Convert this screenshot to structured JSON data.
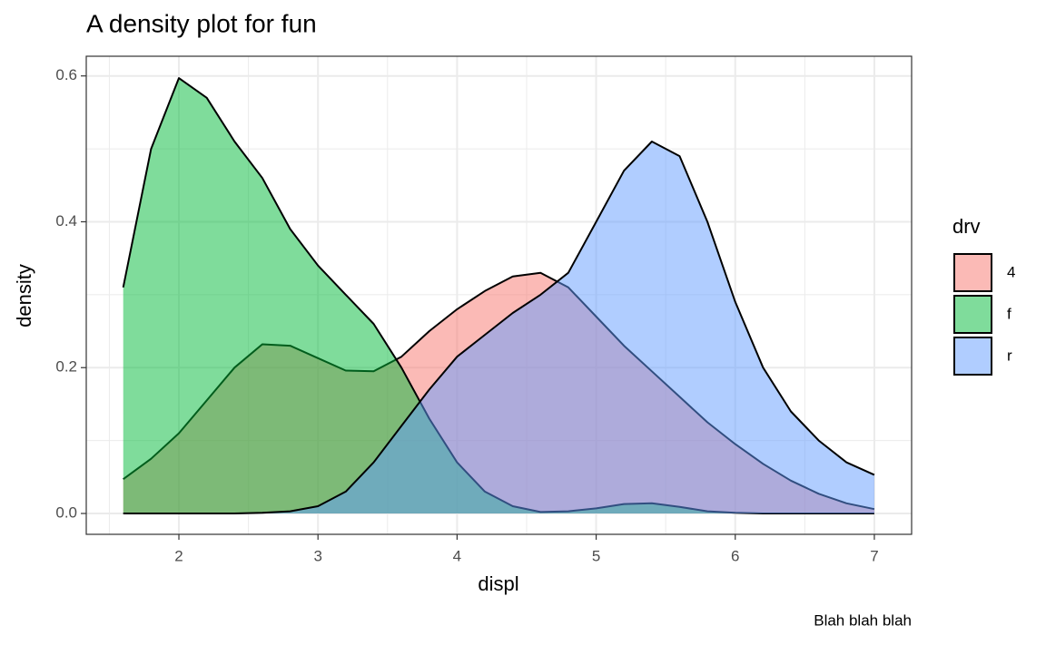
{
  "chart_data": {
    "type": "density",
    "title": "A density plot for fun",
    "x_label": "displ",
    "y_label": "density",
    "caption": "Blah blah blah",
    "legend_title": "drv",
    "legend_position": "right",
    "grid": true,
    "x": [
      1.6,
      1.8,
      2.0,
      2.2,
      2.4,
      2.6,
      2.8,
      3.0,
      3.2,
      3.4,
      3.6,
      3.8,
      4.0,
      4.2,
      4.4,
      4.6,
      4.8,
      5.0,
      5.2,
      5.4,
      5.6,
      5.8,
      6.0,
      6.2,
      6.4,
      6.6,
      6.8,
      7.0
    ],
    "series": [
      {
        "name": "4",
        "color": "#F8766D",
        "values": [
          0.047,
          0.075,
          0.11,
          0.155,
          0.2,
          0.232,
          0.23,
          0.213,
          0.196,
          0.195,
          0.215,
          0.25,
          0.28,
          0.305,
          0.325,
          0.33,
          0.31,
          0.27,
          0.23,
          0.195,
          0.16,
          0.125,
          0.095,
          0.068,
          0.045,
          0.027,
          0.014,
          0.006
        ]
      },
      {
        "name": "f",
        "color": "#00BA38",
        "values": [
          0.31,
          0.5,
          0.597,
          0.57,
          0.51,
          0.46,
          0.39,
          0.34,
          0.3,
          0.26,
          0.2,
          0.13,
          0.07,
          0.03,
          0.01,
          0.002,
          0.003,
          0.007,
          0.013,
          0.014,
          0.009,
          0.003,
          0.001,
          0,
          0,
          0,
          0,
          0
        ]
      },
      {
        "name": "r",
        "color": "#619CFF",
        "values": [
          0,
          0,
          0,
          0,
          0,
          0.001,
          0.003,
          0.01,
          0.03,
          0.07,
          0.12,
          0.17,
          0.215,
          0.245,
          0.275,
          0.3,
          0.33,
          0.4,
          0.47,
          0.51,
          0.49,
          0.4,
          0.29,
          0.2,
          0.14,
          0.1,
          0.07,
          0.053
        ]
      }
    ],
    "xlim": [
      1.334,
      7.268
    ],
    "ylim": [
      -0.0286,
      0.627
    ],
    "xticks": [
      2,
      3,
      4,
      5,
      6,
      7
    ],
    "yticks": [
      {
        "value": 0,
        "label": "0.0"
      },
      0.2,
      0.4,
      0.6
    ]
  }
}
